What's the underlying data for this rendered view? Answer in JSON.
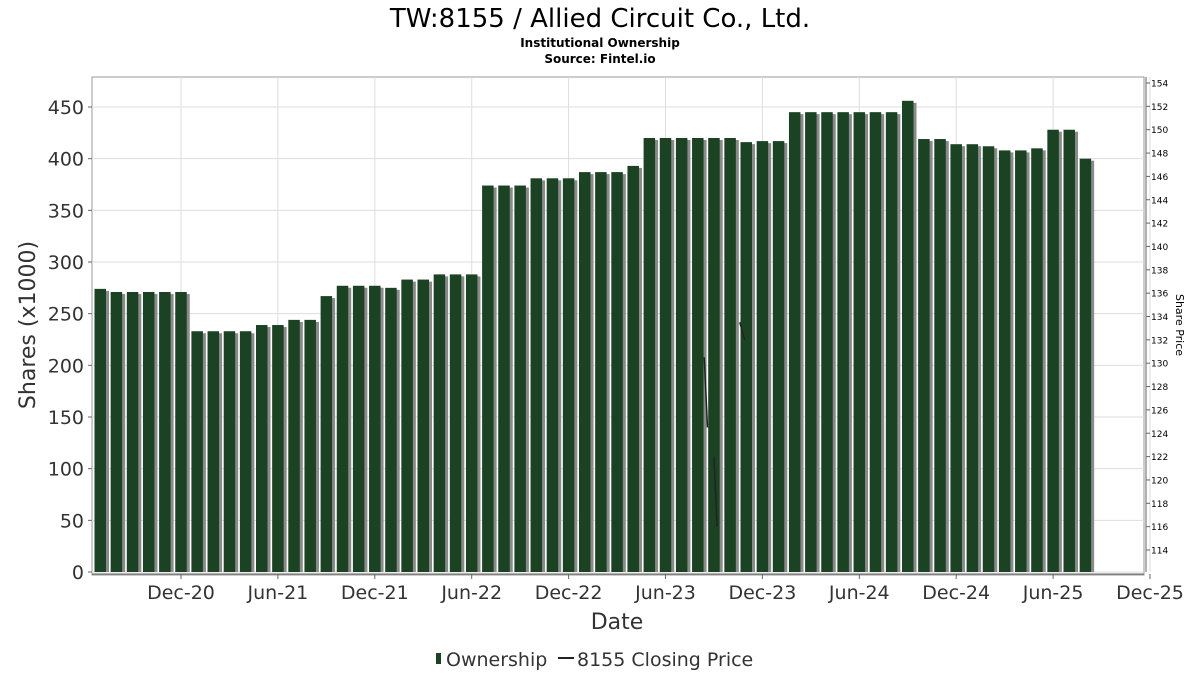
{
  "chart_data": {
    "type": "bar",
    "title": "TW:8155 / Allied Circuit Co., Ltd.",
    "subtitle": "Institutional Ownership",
    "source": "Source: Fintel.io",
    "xlabel": "Date",
    "ylabel": "Shares (x1000)",
    "y2label": "Share Price",
    "ylim": [
      0,
      470
    ],
    "y_ticks": [
      0,
      50,
      100,
      150,
      200,
      250,
      300,
      350,
      400,
      450
    ],
    "y2lim": [
      112,
      154.5
    ],
    "y2_ticks": [
      114,
      116,
      118,
      120,
      122,
      124,
      126,
      128,
      130,
      132,
      134,
      136,
      138,
      140,
      142,
      144,
      146,
      148,
      150,
      152,
      154
    ],
    "x_ticks": [
      "Dec-20",
      "Jun-21",
      "Dec-21",
      "Jun-22",
      "Dec-22",
      "Jun-23",
      "Dec-23",
      "Jun-24",
      "Dec-24",
      "Jun-25",
      "Dec-25"
    ],
    "grid": true,
    "legend_position": "bottom-center",
    "colors": {
      "bar": "#1b4323",
      "bar_shadow": "#8a8a8a",
      "price_line": "#222222",
      "grid": "#dddddd"
    },
    "series": [
      {
        "name": "Ownership",
        "values": [
          274,
          271,
          271,
          271,
          271,
          271,
          233,
          233,
          233,
          233,
          239,
          239,
          244,
          244,
          267,
          277,
          277,
          277,
          275,
          283,
          283,
          288,
          288,
          288,
          374,
          374,
          374,
          381,
          381,
          381,
          387,
          387,
          387,
          393,
          420,
          420,
          420,
          420,
          420,
          420,
          416,
          417,
          417,
          445,
          445,
          445,
          445,
          445,
          445,
          445,
          456,
          419,
          419,
          414,
          414,
          412,
          408,
          408,
          410,
          428,
          428,
          400
        ]
      },
      {
        "name": "8155 Closing Price",
        "points": [
          [
            43.4,
            130.5
          ],
          [
            43.6,
            124.5
          ],
          [
            44.0,
            122.0
          ],
          [
            44.2,
            116.0
          ],
          [
            45.6,
            133.5
          ],
          [
            45.9,
            132.0
          ]
        ]
      }
    ]
  }
}
